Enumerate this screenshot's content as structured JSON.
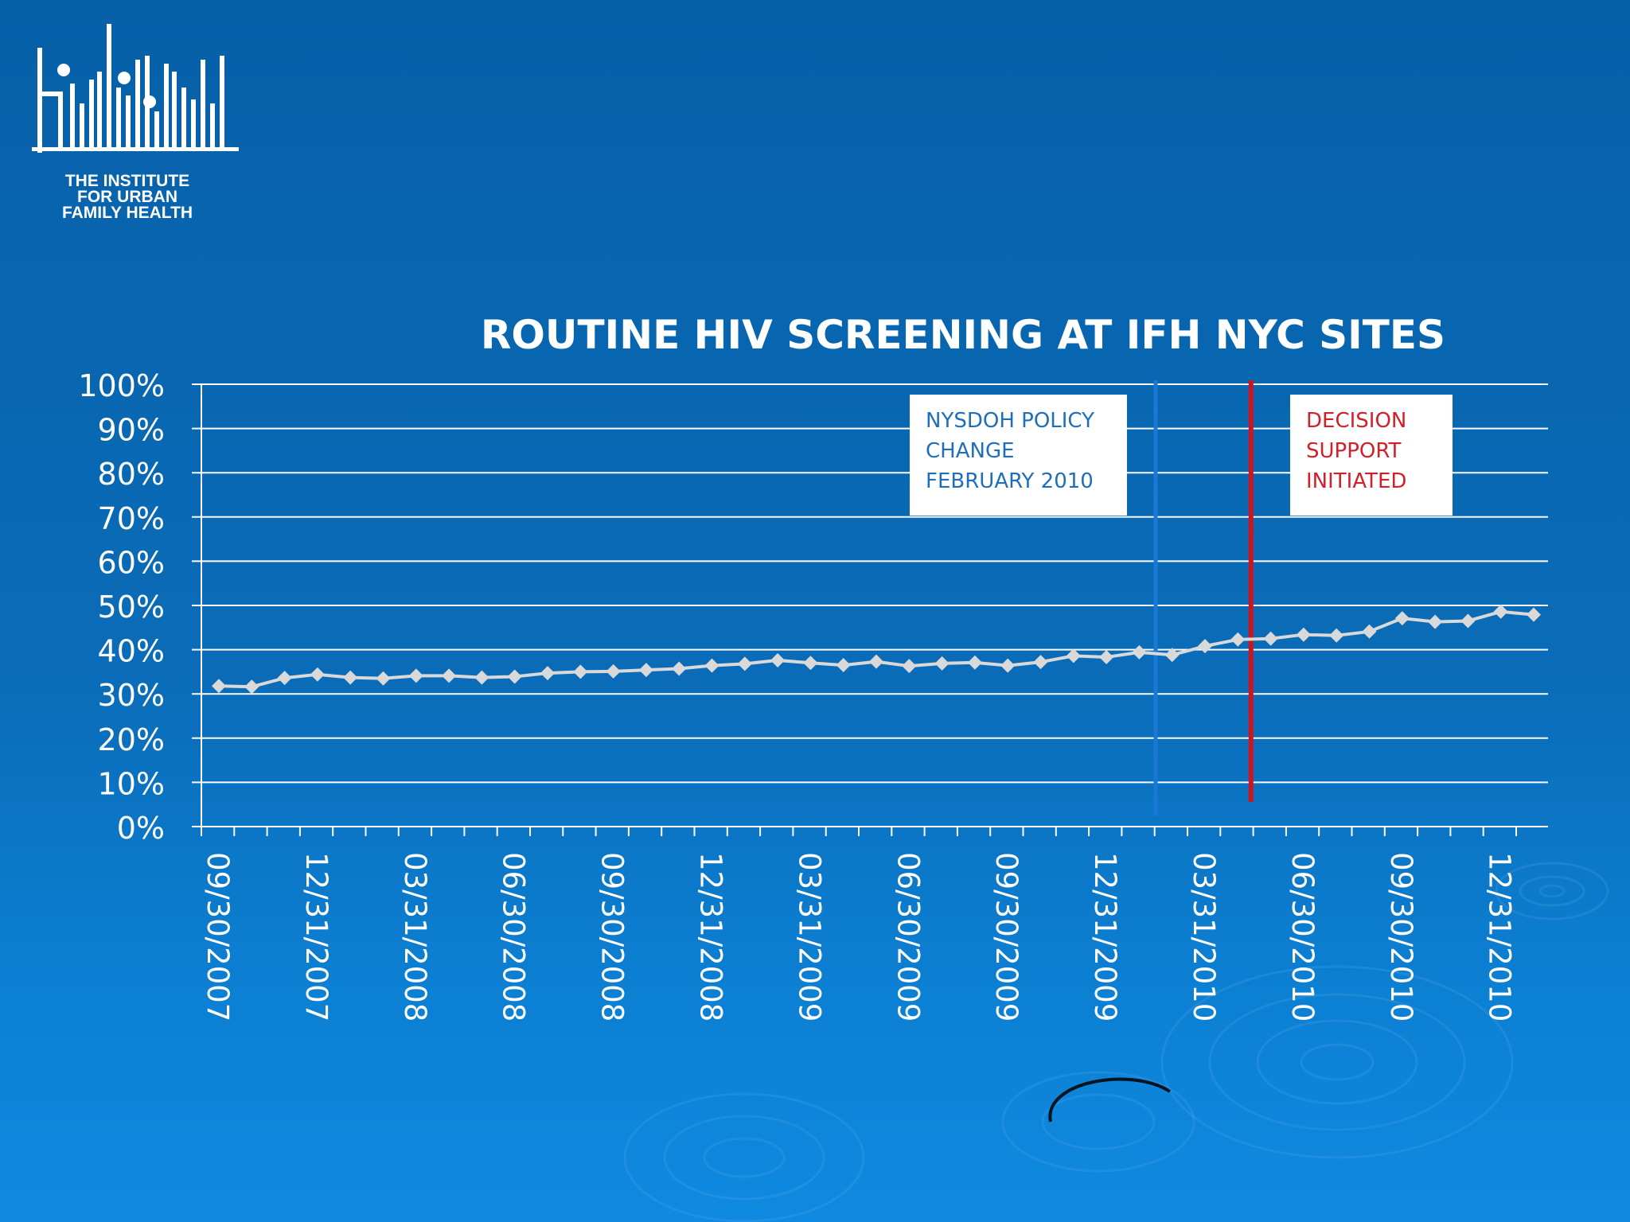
{
  "logo": {
    "icon": "ifh-building-figures-logo",
    "line1": "THE INSTITUTE",
    "line2": "FOR URBAN",
    "line3": "FAMILY HEALTH"
  },
  "chart_data": {
    "type": "line",
    "title": "ROUTINE HIV SCREENING AT IFH NYC SITES",
    "xlabel": "",
    "ylabel": "",
    "ylim": [
      0,
      100
    ],
    "y_ticks": [
      "0%",
      "10%",
      "20%",
      "30%",
      "40%",
      "50%",
      "60%",
      "70%",
      "80%",
      "90%",
      "100%"
    ],
    "x_ticks": [
      "09/30/2007",
      "12/31/2007",
      "03/31/2008",
      "06/30/2008",
      "09/30/2008",
      "12/31/2008",
      "03/31/2009",
      "06/30/2009",
      "09/30/2009",
      "12/31/2009",
      "03/31/2010",
      "06/30/2010",
      "09/30/2010",
      "12/31/2010"
    ],
    "grid": true,
    "legend": "none",
    "series": [
      {
        "color": "#d9d9d9",
        "marker": "diamond",
        "values": [
          31.8,
          31.6,
          33.6,
          34.4,
          33.7,
          33.5,
          34.1,
          34.1,
          33.7,
          33.9,
          34.7,
          35.0,
          35.1,
          35.4,
          35.7,
          36.4,
          36.8,
          37.6,
          37.0,
          36.5,
          37.3,
          36.3,
          36.9,
          37.1,
          36.4,
          37.2,
          38.6,
          38.3,
          39.4,
          38.8,
          40.8,
          42.3,
          42.5,
          43.4,
          43.2,
          44.1,
          47.1,
          46.3,
          46.5,
          48.6,
          47.9
        ]
      }
    ],
    "annotations": [
      {
        "at_index": 28.5,
        "color": "#1a78d6",
        "lines": [
          "NYSDOH POLICY",
          "CHANGE",
          "FEBRUARY 2010"
        ],
        "text_color": "#1f6fb8"
      },
      {
        "at_index": 31.4,
        "color": "#d0141e",
        "lines": [
          "DECISION",
          "SUPPORT",
          "INITIATED"
        ],
        "text_color": "#d21f2a"
      }
    ]
  }
}
